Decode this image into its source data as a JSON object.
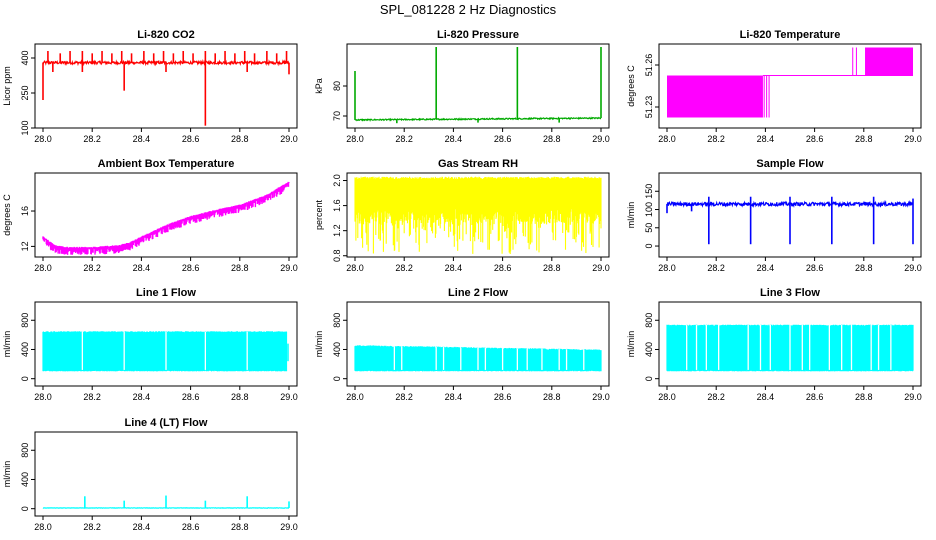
{
  "figure": {
    "title": "SPL_081228  2 Hz Diagnostics"
  },
  "chart_data": [
    {
      "id": "co2",
      "type": "line",
      "title": "Li-820 CO2",
      "ylabel": "Licor ppm",
      "color": "#ff0000",
      "xlim": [
        28.0,
        29.0
      ],
      "ylim": [
        100,
        460
      ],
      "x_ticks": [
        "28.0",
        "28.2",
        "28.4",
        "28.6",
        "28.8",
        "29.0"
      ],
      "y_ticks": [
        {
          "value": 100,
          "label": "100"
        },
        {
          "value": 250,
          "label": "250"
        },
        {
          "value": 400,
          "label": "400"
        }
      ],
      "series": [
        {
          "name": "CO2",
          "style": "spiky",
          "baseline": 380,
          "noise": 6,
          "spikes_up": [
            [
              28.02,
              430
            ],
            [
              28.07,
              420
            ],
            [
              28.11,
              430
            ],
            [
              28.16,
              430
            ],
            [
              28.2,
              420
            ],
            [
              28.24,
              430
            ],
            [
              28.28,
              420
            ],
            [
              28.32,
              430
            ],
            [
              28.36,
              420
            ],
            [
              28.41,
              430
            ],
            [
              28.45,
              420
            ],
            [
              28.49,
              430
            ],
            [
              28.53,
              420
            ],
            [
              28.57,
              430
            ],
            [
              28.61,
              420
            ],
            [
              28.66,
              430
            ],
            [
              28.7,
              420
            ],
            [
              28.74,
              430
            ],
            [
              28.78,
              420
            ],
            [
              28.82,
              430
            ],
            [
              28.86,
              420
            ],
            [
              28.91,
              430
            ],
            [
              28.95,
              420
            ],
            [
              28.99,
              430
            ]
          ],
          "spikes_down": [
            [
              28.0,
              220
            ],
            [
              28.04,
              340
            ],
            [
              28.16,
              340
            ],
            [
              28.33,
              260
            ],
            [
              28.5,
              340
            ],
            [
              28.66,
              110
            ],
            [
              28.83,
              340
            ],
            [
              29.0,
              330
            ]
          ]
        }
      ]
    },
    {
      "id": "pressure",
      "type": "line",
      "title": "Li-820 Pressure",
      "ylabel": "kPa",
      "color": "#00aa00",
      "xlim": [
        28.0,
        29.0
      ],
      "ylim": [
        66,
        94
      ],
      "x_ticks": [
        "28.0",
        "28.2",
        "28.4",
        "28.6",
        "28.8",
        "29.0"
      ],
      "y_ticks": [
        {
          "value": 70,
          "label": "70"
        },
        {
          "value": 80,
          "label": "80"
        }
      ],
      "series": [
        {
          "name": "Pressure",
          "style": "spiky",
          "baseline": 68.7,
          "noise": 0.2,
          "trend": 0.6,
          "spikes_up": [
            [
              28.0,
              85
            ],
            [
              28.33,
              93
            ],
            [
              28.66,
              93
            ],
            [
              29.0,
              93
            ]
          ],
          "spikes_down": [
            [
              28.17,
              67.6
            ],
            [
              28.5,
              67.8
            ],
            [
              28.83,
              67.8
            ]
          ]
        }
      ]
    },
    {
      "id": "temperature",
      "type": "line",
      "title": "Li-820 Temperature",
      "ylabel": "degrees C",
      "color": "#ff00ff",
      "xlim": [
        28.0,
        29.0
      ],
      "ylim": [
        51.215,
        51.275
      ],
      "x_ticks": [
        "28.0",
        "28.2",
        "28.4",
        "28.6",
        "28.8",
        "29.0"
      ],
      "y_ticks": [
        {
          "value": 51.23,
          "label": "51.23"
        },
        {
          "value": 51.26,
          "label": "51.26"
        }
      ],
      "series": [
        {
          "name": "Temperature",
          "style": "quantized",
          "low": 51.2225,
          "mid": 51.2525,
          "high": 51.2725,
          "low_until": 28.39,
          "low_blips": [
            28.385,
            28.395,
            28.405,
            28.415
          ],
          "high_from": 28.805,
          "high_blips": [
            28.755,
            28.77
          ]
        }
      ]
    },
    {
      "id": "ambient",
      "type": "line",
      "title": "Ambient Box Temperature",
      "ylabel": "degrees C",
      "color": "#ff00ff",
      "xlim": [
        28.0,
        29.0
      ],
      "ylim": [
        10.8,
        20.3
      ],
      "x_ticks": [
        "28.0",
        "28.2",
        "28.4",
        "28.6",
        "28.8",
        "29.0"
      ],
      "y_ticks": [
        {
          "value": 12,
          "label": "12"
        },
        {
          "value": 16,
          "label": "16"
        }
      ],
      "series": [
        {
          "name": "Ambient",
          "style": "band",
          "curve": [
            [
              28.0,
              13.0
            ],
            [
              28.05,
              12.0
            ],
            [
              28.1,
              11.8
            ],
            [
              28.2,
              11.8
            ],
            [
              28.3,
              12.0
            ],
            [
              28.35,
              12.3
            ],
            [
              28.4,
              13.0
            ],
            [
              28.5,
              14.3
            ],
            [
              28.6,
              15.3
            ],
            [
              28.7,
              16.0
            ],
            [
              28.8,
              16.6
            ],
            [
              28.9,
              17.6
            ],
            [
              29.0,
              19.2
            ]
          ],
          "band_below": 0.8,
          "band_above": 0.15
        }
      ]
    },
    {
      "id": "rh",
      "type": "line",
      "title": "Gas Stream RH",
      "ylabel": "percent",
      "color": "#ffff00",
      "xlim": [
        28.0,
        29.0
      ],
      "ylim": [
        0.78,
        2.12
      ],
      "x_ticks": [
        "28.0",
        "28.2",
        "28.4",
        "28.6",
        "28.8",
        "29.0"
      ],
      "y_ticks": [
        {
          "value": 0.8,
          "label": "0.8"
        },
        {
          "value": 1.2,
          "label": "1.2"
        },
        {
          "value": 1.6,
          "label": "1.6"
        },
        {
          "value": 2.0,
          "label": "2.0"
        }
      ],
      "series": [
        {
          "name": "RH",
          "style": "noise_band",
          "center": 1.68,
          "upper": 2.06,
          "lower_dense": 1.3,
          "lower_min": 0.82
        }
      ]
    },
    {
      "id": "sample_flow",
      "type": "line",
      "title": "Sample Flow",
      "ylabel": "ml/min",
      "color": "#0000ff",
      "xlim": [
        28.0,
        29.0
      ],
      "ylim": [
        -30,
        200
      ],
      "x_ticks": [
        "28.0",
        "28.2",
        "28.4",
        "28.6",
        "28.8",
        "29.0"
      ],
      "y_ticks": [
        {
          "value": 0,
          "label": "0"
        },
        {
          "value": 50,
          "label": "50"
        },
        {
          "value": 100,
          "label": "100"
        },
        {
          "value": 150,
          "label": "150"
        }
      ],
      "series": [
        {
          "name": "Sample Flow",
          "style": "spiky",
          "baseline": 115,
          "noise": 5,
          "spikes_up": [
            [
              28.17,
              135
            ],
            [
              28.34,
              135
            ],
            [
              28.5,
              135
            ],
            [
              28.67,
              135
            ],
            [
              28.84,
              135
            ],
            [
              29.0,
              130
            ]
          ],
          "spikes_down": [
            [
              28.0,
              90
            ],
            [
              28.1,
              95
            ],
            [
              28.17,
              5
            ],
            [
              28.34,
              5
            ],
            [
              28.5,
              5
            ],
            [
              28.67,
              5
            ],
            [
              28.84,
              5
            ],
            [
              29.0,
              5
            ]
          ]
        }
      ]
    },
    {
      "id": "line1",
      "type": "line",
      "title": "Line 1 Flow",
      "ylabel": "ml/min",
      "color": "#00ffff",
      "xlim": [
        28.0,
        29.0
      ],
      "ylim": [
        -100,
        1050
      ],
      "x_ticks": [
        "28.0",
        "28.2",
        "28.4",
        "28.6",
        "28.8",
        "29.0"
      ],
      "y_ticks": [
        {
          "value": 0,
          "label": "0"
        },
        {
          "value": 400,
          "label": "400"
        },
        {
          "value": 800,
          "label": "800"
        }
      ],
      "series": [
        {
          "name": "Line 1",
          "style": "block",
          "top": 650,
          "bottom": 100,
          "end": 28.99,
          "tail_top": 480,
          "tail_bottom": 240,
          "gaps": [
            28.16,
            28.33,
            28.5,
            28.66,
            28.83
          ]
        }
      ]
    },
    {
      "id": "line2",
      "type": "line",
      "title": "Line 2 Flow",
      "ylabel": "ml/min",
      "color": "#00ffff",
      "xlim": [
        28.0,
        29.0
      ],
      "ylim": [
        -100,
        1050
      ],
      "x_ticks": [
        "28.0",
        "28.2",
        "28.4",
        "28.6",
        "28.8",
        "29.0"
      ],
      "y_ticks": [
        {
          "value": 0,
          "label": "0"
        },
        {
          "value": 400,
          "label": "400"
        },
        {
          "value": 800,
          "label": "800"
        }
      ],
      "series": [
        {
          "name": "Line 2",
          "style": "block",
          "top": 460,
          "bottom": 100,
          "end": 29.0,
          "tail_top": 360,
          "tail_bottom": 300,
          "top_end": 400,
          "gaps": [
            28.16,
            28.19,
            28.33,
            28.36,
            28.43,
            28.5,
            28.53,
            28.6,
            28.66,
            28.7,
            28.76,
            28.83,
            28.86,
            28.93
          ]
        }
      ]
    },
    {
      "id": "line3",
      "type": "line",
      "title": "Line 3 Flow",
      "ylabel": "ml/min",
      "color": "#00ffff",
      "xlim": [
        28.0,
        29.0
      ],
      "ylim": [
        -100,
        1050
      ],
      "x_ticks": [
        "28.0",
        "28.2",
        "28.4",
        "28.6",
        "28.8",
        "29.0"
      ],
      "y_ticks": [
        {
          "value": 0,
          "label": "0"
        },
        {
          "value": 400,
          "label": "400"
        },
        {
          "value": 800,
          "label": "800"
        }
      ],
      "series": [
        {
          "name": "Line 3",
          "style": "block",
          "top": 740,
          "bottom": 100,
          "end": 29.0,
          "tail_top": 560,
          "tail_bottom": 520,
          "gaps": [
            28.08,
            28.12,
            28.16,
            28.21,
            28.33,
            28.38,
            28.42,
            28.5,
            28.55,
            28.58,
            28.66,
            28.71,
            28.75,
            28.83,
            28.86,
            28.91
          ]
        }
      ]
    },
    {
      "id": "line4",
      "type": "line",
      "title": "Line 4 (LT) Flow",
      "ylabel": "ml/min",
      "color": "#00ffff",
      "xlim": [
        28.0,
        29.0
      ],
      "ylim": [
        -100,
        1050
      ],
      "x_ticks": [
        "28.0",
        "28.2",
        "28.4",
        "28.6",
        "28.8",
        "29.0"
      ],
      "y_ticks": [
        {
          "value": 0,
          "label": "0"
        },
        {
          "value": 400,
          "label": "400"
        },
        {
          "value": 800,
          "label": "800"
        }
      ],
      "series": [
        {
          "name": "Line 4",
          "style": "spiky",
          "baseline": 10,
          "noise": 3,
          "spikes_up": [
            [
              28.17,
              170
            ],
            [
              28.33,
              110
            ],
            [
              28.5,
              180
            ],
            [
              28.66,
              110
            ],
            [
              28.83,
              170
            ],
            [
              29.0,
              100
            ]
          ],
          "spikes_down": []
        }
      ]
    }
  ]
}
